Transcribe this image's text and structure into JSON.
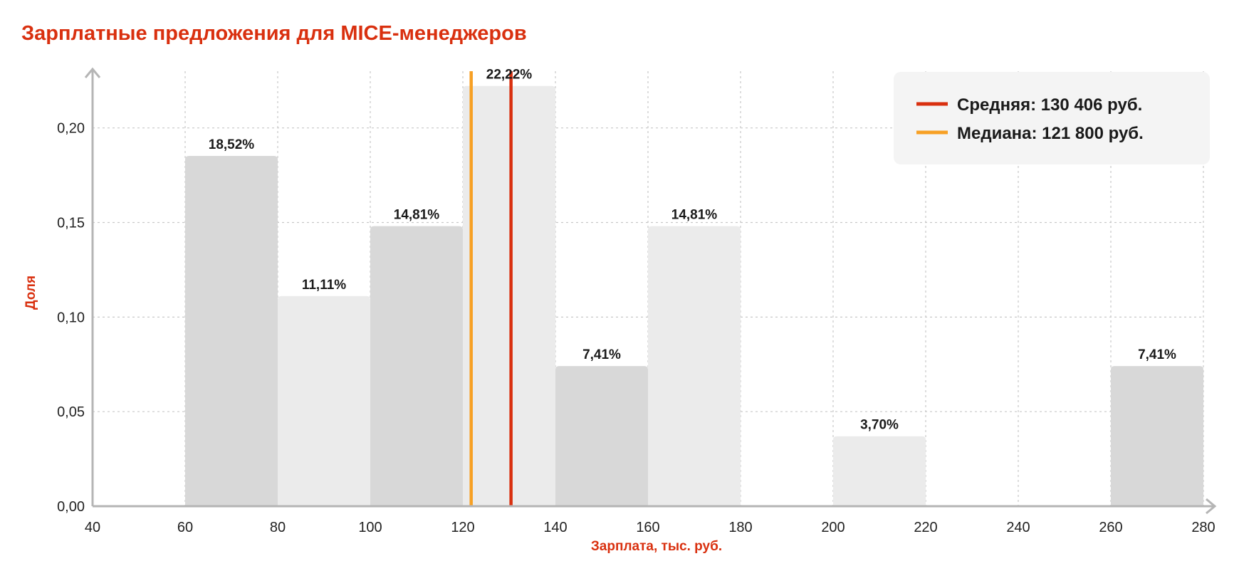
{
  "chart_data": {
    "type": "bar",
    "title": "Зарплатные предложения для MICE-менеджеров",
    "xlabel": "Зарплата, тыс. руб.",
    "ylabel": "Доля",
    "xlim": [
      40,
      280
    ],
    "ylim": [
      0,
      0.23
    ],
    "x_ticks": [
      "40",
      "60",
      "80",
      "100",
      "120",
      "140",
      "160",
      "180",
      "200",
      "220",
      "240",
      "260",
      "280"
    ],
    "y_ticks": [
      "0,00",
      "0,05",
      "0,10",
      "0,15",
      "0,20"
    ],
    "grid": true,
    "bins": [
      {
        "from": 60,
        "to": 80,
        "value": 0.1852,
        "label": "18,52%",
        "shade": "dark"
      },
      {
        "from": 80,
        "to": 100,
        "value": 0.1111,
        "label": "11,11%",
        "shade": "light"
      },
      {
        "from": 100,
        "to": 120,
        "value": 0.1481,
        "label": "14,81%",
        "shade": "dark"
      },
      {
        "from": 120,
        "to": 140,
        "value": 0.2222,
        "label": "22,22%",
        "shade": "light"
      },
      {
        "from": 140,
        "to": 160,
        "value": 0.0741,
        "label": "7,41%",
        "shade": "dark"
      },
      {
        "from": 160,
        "to": 180,
        "value": 0.1481,
        "label": "14,81%",
        "shade": "light"
      },
      {
        "from": 200,
        "to": 220,
        "value": 0.037,
        "label": "3,70%",
        "shade": "light"
      },
      {
        "from": 260,
        "to": 280,
        "value": 0.0741,
        "label": "7,41%",
        "shade": "dark"
      }
    ],
    "reference_lines": [
      {
        "name": "Средняя",
        "x": 130.406,
        "legend": "Средняя: 130 406 руб.",
        "color": "#d9300f"
      },
      {
        "name": "Медиана",
        "x": 121.8,
        "legend": "Медиана: 121 800 руб.",
        "color": "#f7a024"
      }
    ],
    "legend_position": "top-right",
    "colors": {
      "bar_dark": "#d8d8d8",
      "bar_light": "#ebebeb",
      "legend_bg": "#f4f4f4"
    }
  }
}
